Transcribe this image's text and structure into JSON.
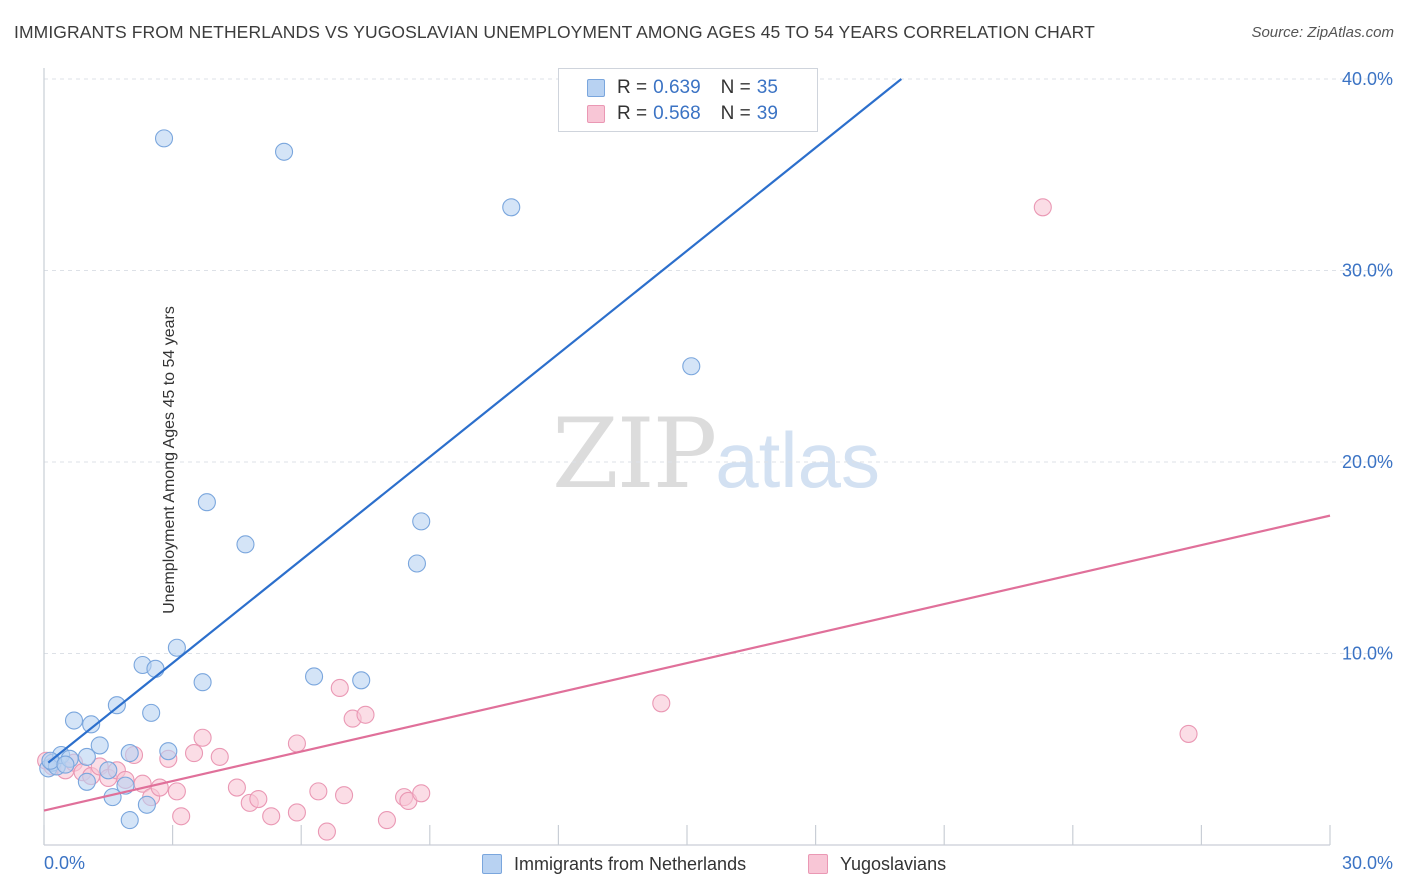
{
  "title": "IMMIGRANTS FROM NETHERLANDS VS YUGOSLAVIAN UNEMPLOYMENT AMONG AGES 45 TO 54 YEARS CORRELATION CHART",
  "source": "Source: ZipAtlas.com",
  "watermark": {
    "zip": "ZIP",
    "atlas": "atlas"
  },
  "colors": {
    "blue_fill": "#b8d2f2",
    "blue_stroke": "#7aa6dd",
    "blue_line": "#2c6fcc",
    "pink_fill": "#f8c6d6",
    "pink_stroke": "#ea98b4",
    "pink_line": "#e0709a",
    "tick_text": "#3b73c4",
    "grid": "#dde1e7"
  },
  "legend": {
    "rows": [
      {
        "r_label": "R =",
        "r_value": "0.639",
        "n_label": "N =",
        "n_value": "35"
      },
      {
        "r_label": "R =",
        "r_value": "0.568",
        "n_label": "N =",
        "n_value": "39"
      }
    ]
  },
  "bottom_legend": [
    "Immigrants from Netherlands",
    "Yugoslavians"
  ],
  "chart_data": {
    "type": "scatter",
    "title": "IMMIGRANTS FROM NETHERLANDS VS YUGOSLAVIAN UNEMPLOYMENT AMONG AGES 45 TO 54 YEARS CORRELATION CHART",
    "xlabel": "",
    "ylabel": "Unemployment Among Ages 45 to 54 years",
    "xlim": [
      0,
      30
    ],
    "ylim": [
      0,
      40
    ],
    "x_tick_labels": [
      "0.0%",
      "30.0%"
    ],
    "y_ticks": [
      10,
      20,
      30,
      40
    ],
    "y_tick_labels": [
      "10.0%",
      "20.0%",
      "30.0%",
      "40.0%"
    ],
    "grid": true,
    "legend_position": "top-center",
    "series": [
      {
        "name": "Immigrants from Netherlands",
        "color": "blue",
        "points": [
          [
            0.1,
            4.0
          ],
          [
            0.2,
            4.3
          ],
          [
            0.3,
            4.1
          ],
          [
            0.4,
            4.7
          ],
          [
            0.6,
            4.5
          ],
          [
            0.7,
            6.5
          ],
          [
            1.0,
            4.6
          ],
          [
            1.1,
            6.3
          ],
          [
            1.3,
            5.2
          ],
          [
            1.5,
            3.9
          ],
          [
            1.0,
            3.3
          ],
          [
            1.6,
            2.5
          ],
          [
            1.7,
            7.3
          ],
          [
            1.9,
            3.1
          ],
          [
            2.0,
            4.8
          ],
          [
            2.0,
            1.3
          ],
          [
            2.3,
            9.4
          ],
          [
            2.4,
            2.1
          ],
          [
            2.5,
            6.9
          ],
          [
            2.6,
            9.2
          ],
          [
            2.8,
            36.9
          ],
          [
            2.9,
            4.9
          ],
          [
            3.1,
            10.3
          ],
          [
            3.7,
            8.5
          ],
          [
            3.8,
            17.9
          ],
          [
            4.7,
            15.7
          ],
          [
            5.6,
            36.2
          ],
          [
            6.3,
            8.8
          ],
          [
            7.4,
            8.6
          ],
          [
            8.7,
            14.7
          ],
          [
            8.8,
            16.9
          ],
          [
            10.9,
            33.3
          ],
          [
            15.1,
            25.0
          ],
          [
            0.15,
            4.4
          ],
          [
            0.5,
            4.2
          ]
        ],
        "trend": {
          "x": [
            0.1,
            20.0
          ],
          "y": [
            4.3,
            40.0
          ]
        }
      },
      {
        "name": "Yugoslavians",
        "color": "pink",
        "points": [
          [
            0.05,
            4.4
          ],
          [
            0.2,
            4.1
          ],
          [
            0.5,
            3.9
          ],
          [
            0.7,
            4.3
          ],
          [
            0.9,
            3.8
          ],
          [
            1.1,
            3.6
          ],
          [
            1.3,
            4.1
          ],
          [
            1.5,
            3.5
          ],
          [
            1.7,
            3.9
          ],
          [
            1.9,
            3.4
          ],
          [
            2.1,
            4.7
          ],
          [
            2.3,
            3.2
          ],
          [
            2.5,
            2.5
          ],
          [
            2.7,
            3.0
          ],
          [
            2.9,
            4.5
          ],
          [
            3.1,
            2.8
          ],
          [
            3.2,
            1.5
          ],
          [
            3.5,
            4.8
          ],
          [
            3.7,
            5.6
          ],
          [
            4.1,
            4.6
          ],
          [
            4.5,
            3.0
          ],
          [
            4.8,
            2.2
          ],
          [
            5.0,
            2.4
          ],
          [
            5.3,
            1.5
          ],
          [
            5.9,
            5.3
          ],
          [
            5.9,
            1.7
          ],
          [
            6.4,
            2.8
          ],
          [
            6.6,
            0.7
          ],
          [
            6.9,
            8.2
          ],
          [
            7.0,
            2.6
          ],
          [
            7.2,
            6.6
          ],
          [
            7.5,
            6.8
          ],
          [
            8.0,
            1.3
          ],
          [
            8.4,
            2.5
          ],
          [
            8.5,
            2.3
          ],
          [
            8.8,
            2.7
          ],
          [
            14.4,
            7.4
          ],
          [
            23.3,
            33.3
          ],
          [
            26.7,
            5.8
          ]
        ],
        "trend": {
          "x": [
            0.0,
            30.0
          ],
          "y": [
            1.8,
            17.2
          ]
        }
      }
    ]
  }
}
